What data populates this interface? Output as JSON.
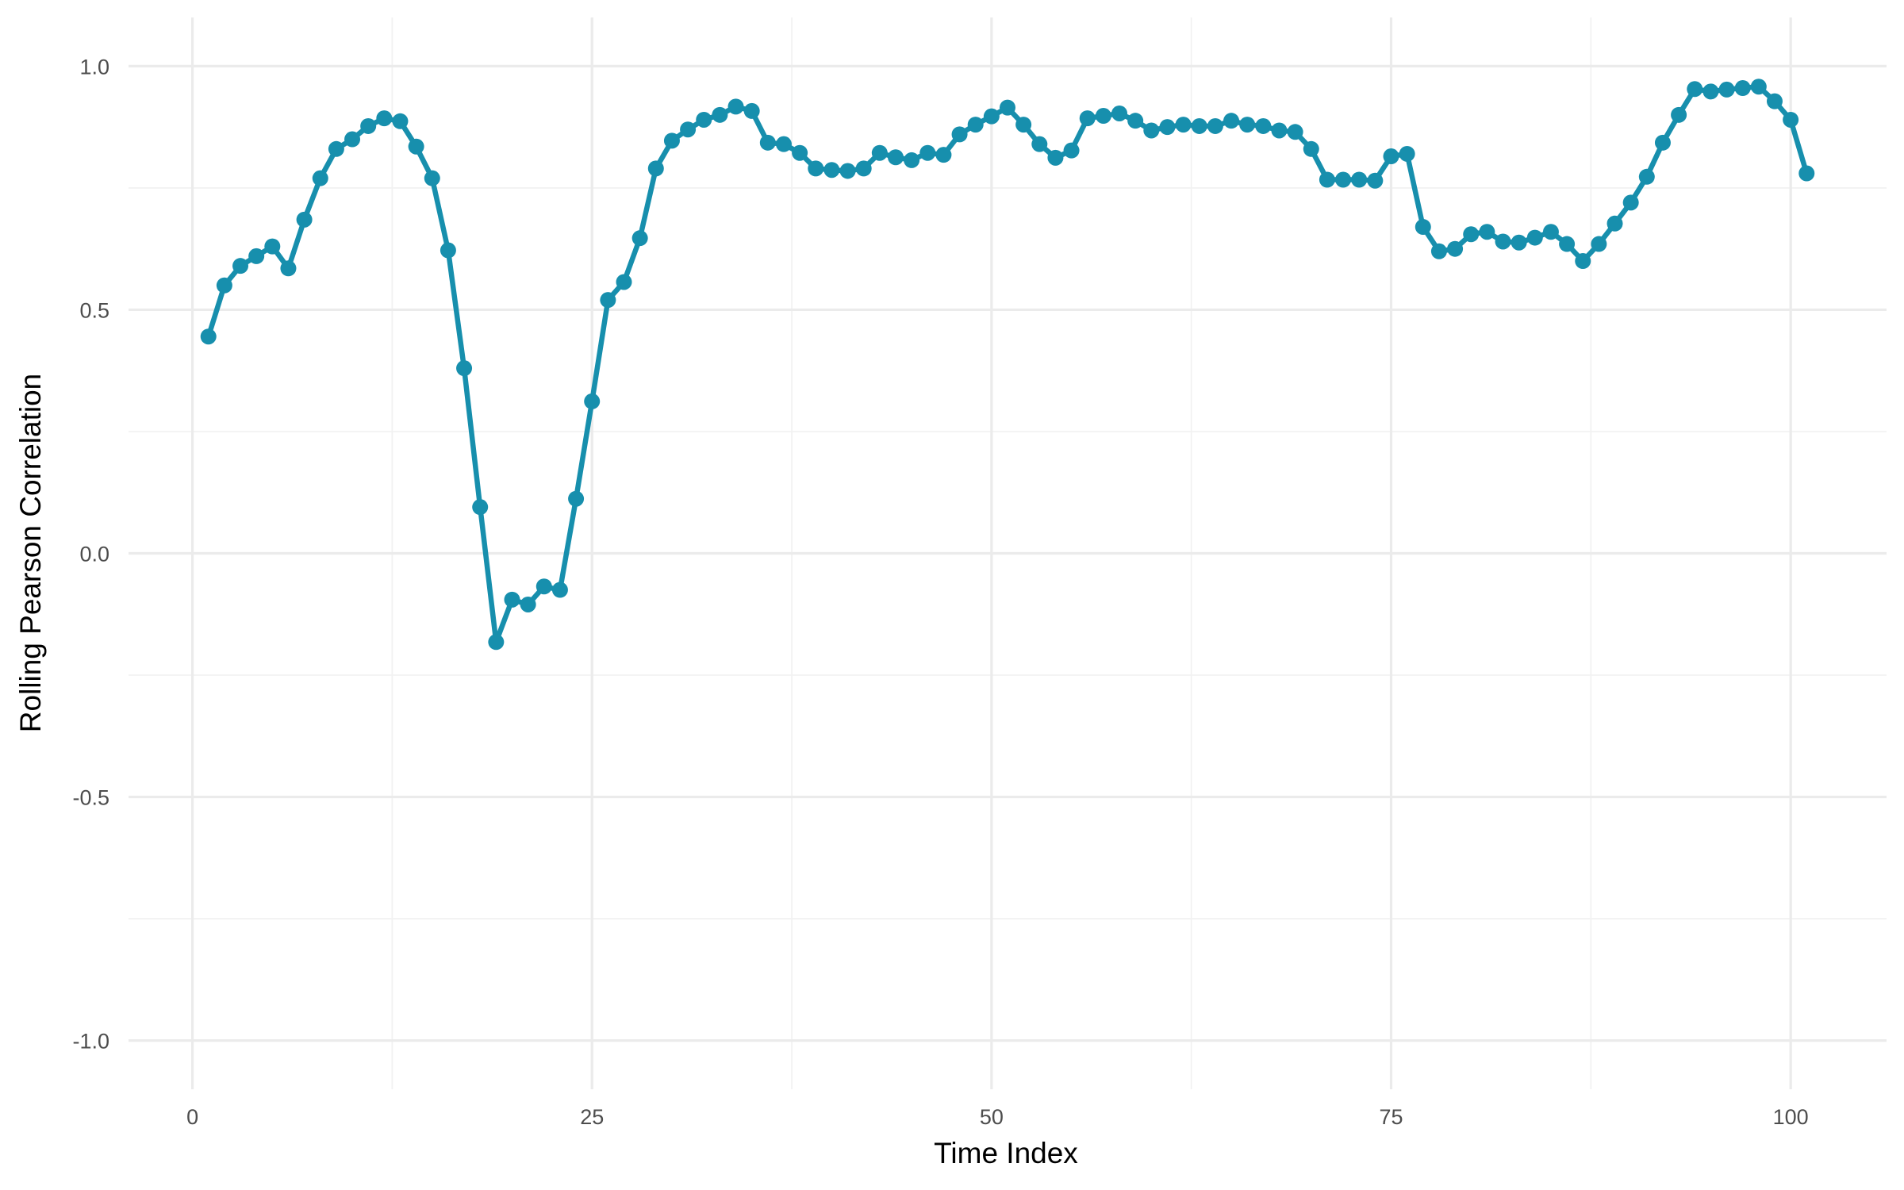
{
  "chart_data": {
    "type": "line",
    "title": "",
    "xlabel": "Time Index",
    "ylabel": "Rolling Pearson Correlation",
    "xlim": [
      -4,
      106
    ],
    "ylim": [
      -1.1,
      1.1
    ],
    "x_ticks": [
      0,
      25,
      50,
      75,
      100
    ],
    "x_tick_labels": [
      "0",
      "25",
      "50",
      "75",
      "100"
    ],
    "y_ticks": [
      -1.0,
      -0.5,
      0.0,
      0.5,
      1.0
    ],
    "y_tick_labels": [
      "-1.0",
      "-0.5",
      "0.0",
      "0.5",
      "1.0"
    ],
    "grid": true,
    "line_color": "#178fad",
    "series": [
      {
        "x": [
          1,
          2,
          3,
          4,
          5,
          6,
          7,
          8,
          9,
          10,
          11,
          12,
          13,
          14,
          15,
          16,
          17,
          18,
          19,
          20,
          21,
          22,
          23,
          24,
          25,
          26,
          27,
          28,
          29,
          30,
          31,
          32,
          33,
          34,
          35,
          36,
          37,
          38,
          39,
          40,
          41,
          42,
          43,
          44,
          45,
          46,
          47,
          48,
          49,
          50,
          51,
          52,
          53,
          54,
          55,
          56,
          57,
          58,
          59,
          60,
          61,
          62,
          63,
          64,
          65,
          66,
          67,
          68,
          69,
          70,
          71,
          72,
          73,
          74,
          75,
          76,
          77,
          78,
          79,
          80,
          81,
          82,
          83,
          84,
          85,
          86,
          87,
          88,
          89,
          90,
          91,
          92,
          93,
          94,
          95,
          96,
          97,
          98,
          99,
          100,
          101
        ],
        "values": [
          0.445,
          0.55,
          0.59,
          0.61,
          0.63,
          0.585,
          0.685,
          0.77,
          0.83,
          0.85,
          0.877,
          0.893,
          0.887,
          0.835,
          0.77,
          0.622,
          0.38,
          0.095,
          -0.182,
          -0.095,
          -0.105,
          -0.068,
          -0.075,
          0.112,
          0.312,
          0.52,
          0.557,
          0.647,
          0.79,
          0.847,
          0.87,
          0.89,
          0.9,
          0.917,
          0.908,
          0.843,
          0.84,
          0.822,
          0.79,
          0.787,
          0.785,
          0.79,
          0.822,
          0.813,
          0.807,
          0.822,
          0.818,
          0.86,
          0.88,
          0.897,
          0.915,
          0.88,
          0.84,
          0.812,
          0.827,
          0.893,
          0.898,
          0.903,
          0.888,
          0.868,
          0.875,
          0.88,
          0.877,
          0.877,
          0.888,
          0.88,
          0.877,
          0.868,
          0.865,
          0.83,
          0.767,
          0.767,
          0.767,
          0.765,
          0.815,
          0.82,
          0.67,
          0.62,
          0.625,
          0.655,
          0.66,
          0.64,
          0.638,
          0.648,
          0.66,
          0.635,
          0.6,
          0.635,
          0.677,
          0.72,
          0.773,
          0.843,
          0.9,
          0.953,
          0.948,
          0.952,
          0.955,
          0.958,
          0.928,
          0.89,
          0.78
        ]
      }
    ]
  }
}
